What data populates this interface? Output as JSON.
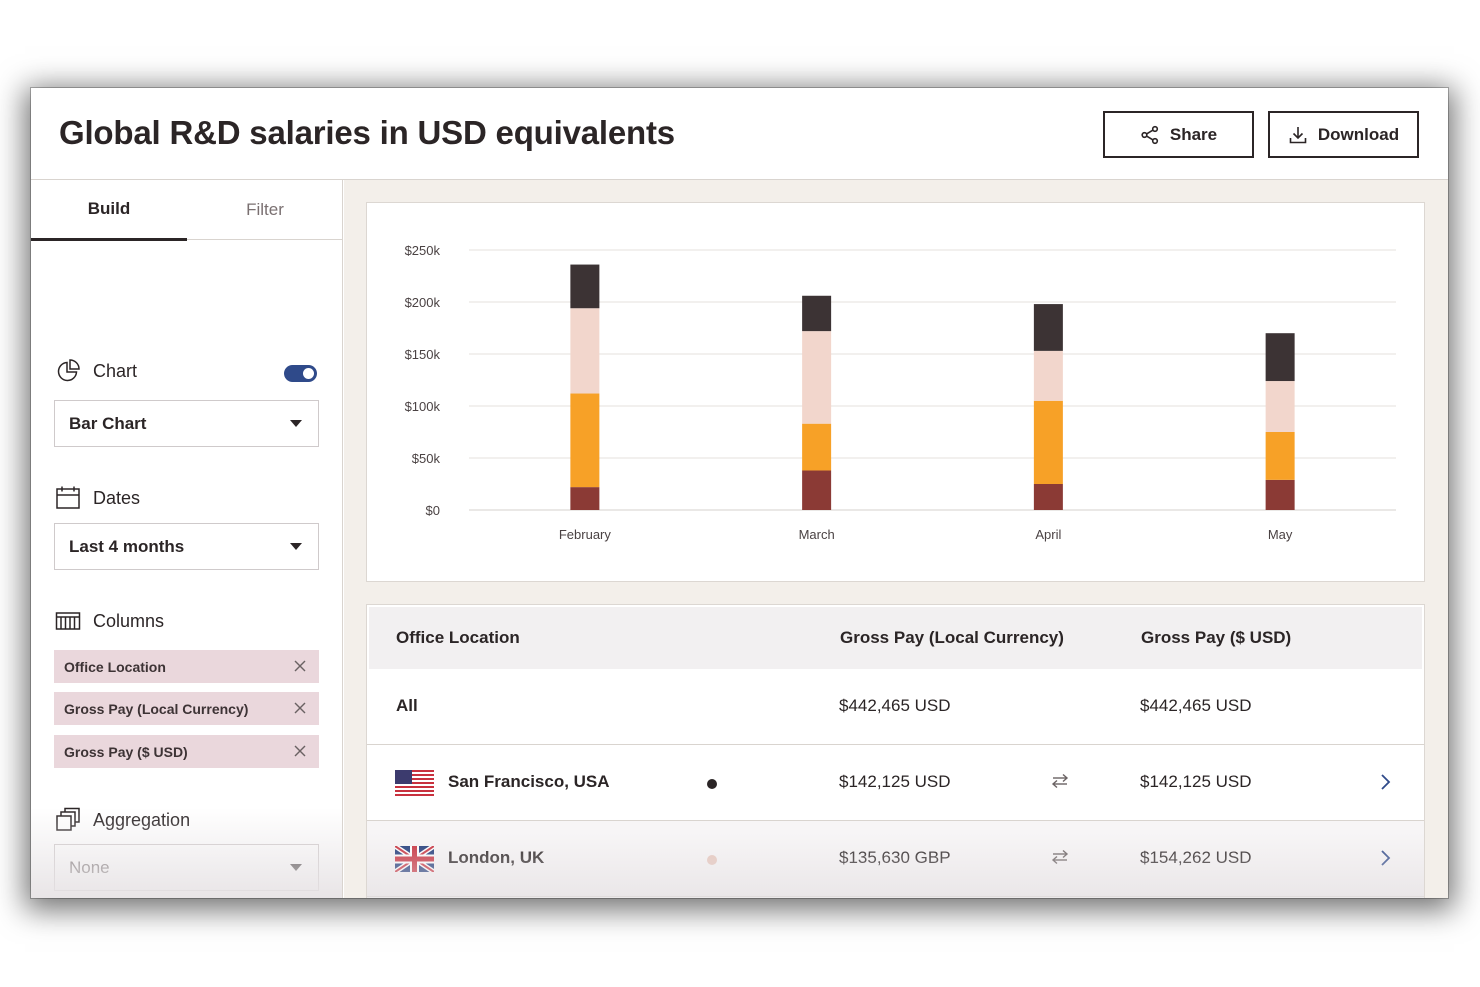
{
  "header": {
    "title": "Global R&D salaries in USD equivalents",
    "share_label": "Share",
    "download_label": "Download"
  },
  "sidebar": {
    "tabs": [
      {
        "label": "Build",
        "active": true
      },
      {
        "label": "Filter",
        "active": false
      }
    ],
    "chart": {
      "label": "Chart",
      "enabled": true,
      "selected": "Bar Chart"
    },
    "dates": {
      "label": "Dates",
      "selected": "Last 4 months"
    },
    "columns": {
      "label": "Columns",
      "items": [
        "Office Location",
        "Gross Pay (Local Currency)",
        "Gross Pay ($ USD)"
      ]
    },
    "aggregation": {
      "label": "Aggregation",
      "selected": "None"
    }
  },
  "colors": {
    "toggle_on": "#2f4a8a",
    "chip_bg": "#ead7dc",
    "series": [
      "#8b3a35",
      "#f7a127",
      "#f2d6cc",
      "#3c3334"
    ]
  },
  "chart_data": {
    "type": "bar",
    "stacked": true,
    "categories": [
      "February",
      "March",
      "April",
      "May"
    ],
    "series": [
      {
        "values": [
          22000,
          38000,
          25000,
          29000
        ]
      },
      {
        "values": [
          90000,
          45000,
          80000,
          46000
        ]
      },
      {
        "values": [
          82000,
          89000,
          48000,
          49000
        ]
      },
      {
        "values": [
          42000,
          34000,
          45000,
          46000
        ]
      }
    ],
    "yticks": [
      "$0",
      "$50k",
      "$100k",
      "$150k",
      "$200k",
      "$250k"
    ],
    "ylim": [
      0,
      250000
    ],
    "grid": true,
    "legend": "none"
  },
  "table": {
    "headers": [
      "Office Location",
      "Gross Pay (Local Currency)",
      "Gross Pay ($ USD)"
    ],
    "rows": [
      {
        "location": "All",
        "flag": "",
        "local": "$442,465 USD",
        "usd": "$442,465 USD",
        "dot": "",
        "swap": false,
        "chevron": false
      },
      {
        "location": "San Francisco, USA",
        "flag": "us-flag-icon",
        "local": "$142,125 USD",
        "usd": "$142,125 USD",
        "dot": "#2b2526",
        "swap": true,
        "chevron": true
      },
      {
        "location": "London, UK",
        "flag": "uk-flag-icon",
        "local": "$135,630 GBP",
        "usd": "$154,262 USD",
        "dot": "#e8c9bf",
        "swap": true,
        "chevron": true
      }
    ]
  }
}
